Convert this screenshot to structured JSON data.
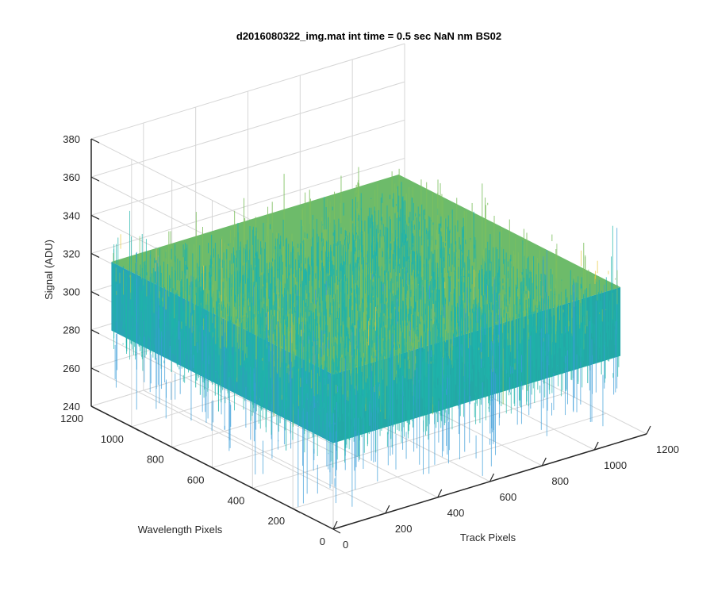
{
  "chart_data": {
    "type": "surface",
    "title": "d2016080322_img.mat int time = 0.5 sec  NaN nm BS02",
    "xlabel": "Track Pixels",
    "ylabel": "Wavelength Pixels",
    "zlabel": "Signal (ADU)",
    "xlim": [
      0,
      1200
    ],
    "ylim": [
      0,
      1200
    ],
    "zlim": [
      240,
      380
    ],
    "xticks": [
      "0",
      "200",
      "400",
      "600",
      "800",
      "1000",
      "1200"
    ],
    "yticks": [
      "0",
      "200",
      "400",
      "600",
      "800",
      "1000",
      "1200"
    ],
    "zticks": [
      "240",
      "260",
      "280",
      "300",
      "320",
      "340",
      "360",
      "380"
    ],
    "data_extent": {
      "x": [
        0,
        1100
      ],
      "y": [
        0,
        1100
      ]
    },
    "signal_mean": 303,
    "signal_range": [
      250,
      370
    ],
    "grid": true,
    "colormap": "parula",
    "colors": {
      "low": "#3b9dd9",
      "mid": "#20b3aa",
      "high_mid": "#7cbf5f",
      "high": "#e8c93a"
    }
  }
}
